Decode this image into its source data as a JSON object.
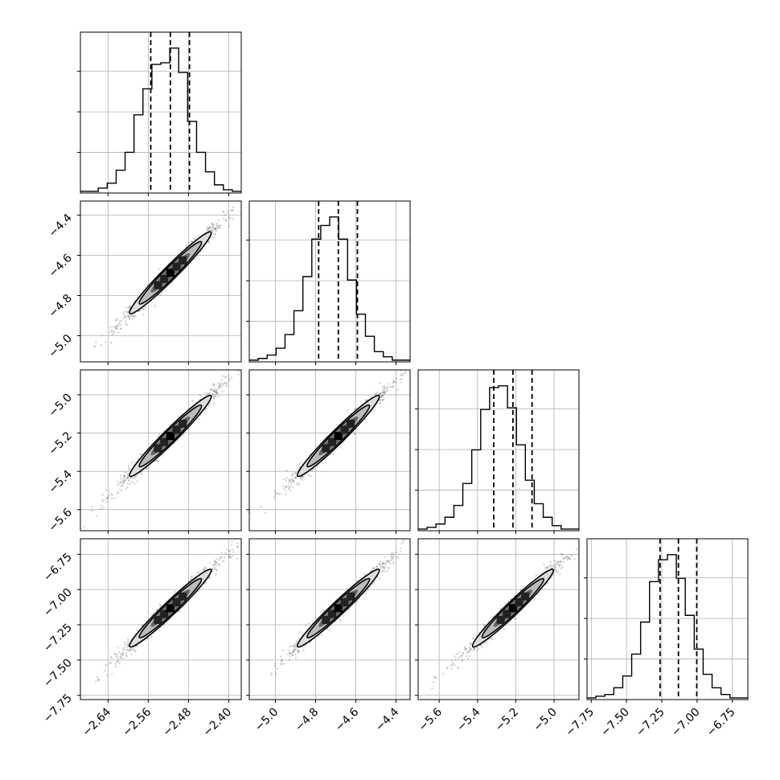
{
  "chart_data": {
    "type": "corner",
    "grid": true,
    "parameters": [
      {
        "index": 0,
        "range": [
          -2.695,
          -2.375
        ],
        "ticks": [
          -2.64,
          -2.56,
          -2.48,
          -2.4
        ],
        "tick_labels": [
          "−2.64",
          "−2.56",
          "−2.48",
          "−2.40"
        ],
        "quantiles": [
          -2.555,
          -2.516,
          -2.478
        ]
      },
      {
        "index": 1,
        "range": [
          -5.13,
          -4.33
        ],
        "ticks": [
          -5.0,
          -4.8,
          -4.6,
          -4.4
        ],
        "tick_labels": [
          "−5.0",
          "−4.8",
          "−4.6",
          "−4.4"
        ],
        "quantiles": [
          -4.785,
          -4.687,
          -4.592
        ]
      },
      {
        "index": 2,
        "range": [
          -5.71,
          -4.87
        ],
        "ticks": [
          -5.6,
          -5.4,
          -5.2,
          -5.0
        ],
        "tick_labels": [
          "−5.6",
          "−5.4",
          "−5.2",
          "−5.0"
        ],
        "quantiles": [
          -5.315,
          -5.215,
          -5.115
        ]
      },
      {
        "index": 3,
        "range": [
          -7.78,
          -6.64
        ],
        "ticks": [
          -7.75,
          -7.5,
          -7.25,
          -7.0,
          -6.75
        ],
        "tick_labels": [
          "−7.75",
          "−7.50",
          "−7.25",
          "−7.00",
          "−6.75"
        ],
        "quantiles": [
          -7.262,
          -7.132,
          -7.002
        ]
      }
    ],
    "histograms": [
      {
        "param": 0,
        "counts": [
          1,
          1,
          3,
          6,
          14,
          25,
          48,
          64,
          79,
          80,
          89,
          74,
          44,
          25,
          13,
          5,
          2,
          1
        ]
      },
      {
        "param": 1,
        "counts": [
          1,
          2,
          4,
          8,
          16,
          30,
          50,
          72,
          80,
          85,
          72,
          48,
          28,
          15,
          6,
          3,
          1,
          1
        ]
      },
      {
        "param": 2,
        "counts": [
          1,
          2,
          4,
          8,
          15,
          28,
          48,
          72,
          85,
          86,
          73,
          51,
          30,
          16,
          8,
          3,
          1,
          1
        ]
      },
      {
        "param": 3,
        "counts": [
          1,
          2,
          3,
          7,
          14,
          27,
          46,
          70,
          83,
          86,
          72,
          50,
          30,
          15,
          7,
          3,
          1,
          1
        ]
      }
    ]
  }
}
